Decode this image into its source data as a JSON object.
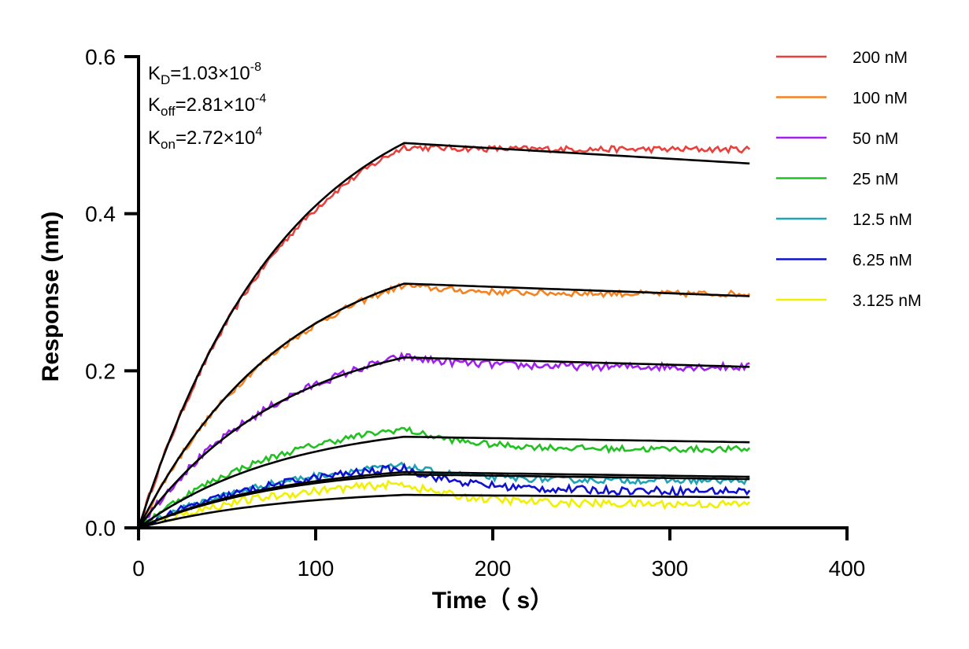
{
  "chart_data": {
    "type": "line",
    "title": "",
    "xlabel": "Time（ s）",
    "ylabel": "Response (nm)",
    "xlim": [
      0,
      400
    ],
    "ylim": [
      0,
      0.6
    ],
    "xticks": [
      "0",
      "100",
      "200",
      "300",
      "400"
    ],
    "yticks": [
      "0.0",
      "0.2",
      "0.4",
      "0.6"
    ],
    "grid": false,
    "legend_position": "right",
    "annotations": {
      "kd": {
        "symbol": "K",
        "sub": "D",
        "value": "=1.03×10",
        "exp": "-8"
      },
      "koff": {
        "symbol": "K",
        "sub": "off",
        "value": "=2.81×10",
        "exp": "-4"
      },
      "kon": {
        "symbol": "K",
        "sub": "on",
        "value": "=2.72×10",
        "exp": "4"
      }
    },
    "association_end": 150,
    "end_time": 345,
    "series": [
      {
        "name": "200 nM",
        "color": "#e8413c",
        "plateau": 0.485,
        "end": 0.482,
        "fit_peak": 0.49,
        "fit_end": 0.464,
        "noise": 0.004
      },
      {
        "name": "100 nM",
        "color": "#f5821f",
        "plateau": 0.309,
        "end": 0.298,
        "fit_peak": 0.311,
        "fit_end": 0.295,
        "noise": 0.004
      },
      {
        "name": "50 nM",
        "color": "#a020f0",
        "plateau": 0.218,
        "end": 0.205,
        "fit_peak": 0.217,
        "fit_end": 0.205,
        "noise": 0.005
      },
      {
        "name": "25 nM",
        "color": "#22c022",
        "plateau": 0.126,
        "end": 0.1,
        "fit_peak": 0.116,
        "fit_end": 0.109,
        "noise": 0.004
      },
      {
        "name": "12.5 nM",
        "color": "#1fa3b5",
        "plateau": 0.079,
        "end": 0.06,
        "fit_peak": 0.071,
        "fit_end": 0.065,
        "noise": 0.004
      },
      {
        "name": "6.25 nM",
        "color": "#1010d0",
        "plateau": 0.076,
        "end": 0.047,
        "fit_peak": 0.068,
        "fit_end": 0.062,
        "noise": 0.005
      },
      {
        "name": "3.125 nM",
        "color": "#f0f000",
        "plateau": 0.056,
        "end": 0.03,
        "fit_peak": 0.042,
        "fit_end": 0.039,
        "noise": 0.005
      }
    ]
  }
}
